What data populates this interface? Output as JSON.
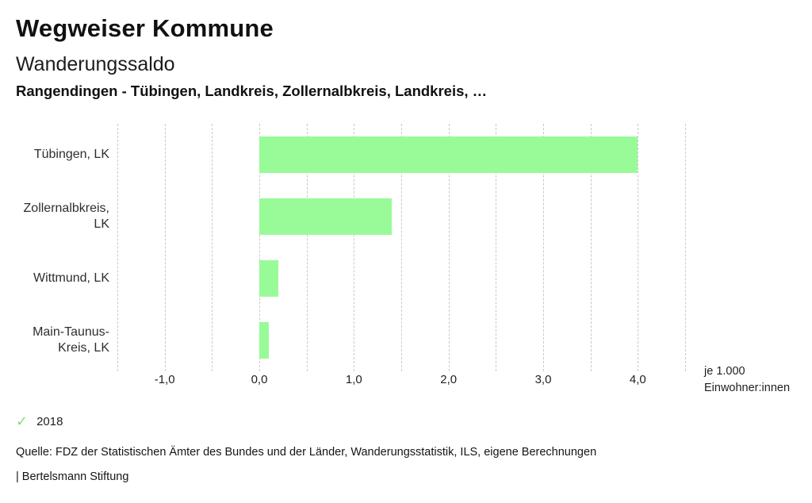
{
  "page": {
    "title": "Wegweiser Kommune",
    "subtitle": "Wanderungssaldo",
    "chart_heading": "Rangendingen - Tübingen, Landkreis, Zollernalbkreis, Landkreis, …"
  },
  "legend": {
    "check_icon": "✓",
    "year": "2018"
  },
  "footer": {
    "source": "Quelle: FDZ der Statistischen Ämter des Bundes und der Länder, Wanderungsstatistik, ILS, eigene Berechnungen",
    "attribution": "| Bertelsmann Stiftung"
  },
  "colors": {
    "bar": "#98FB98",
    "check": "#7FDE7F",
    "gridline": "#C9C9C9",
    "text": "#1A1A1A"
  },
  "chart_data": {
    "type": "bar",
    "orientation": "horizontal",
    "title": "Wanderungssaldo",
    "subtitle": "Rangendingen - Tübingen, Landkreis, Zollernalbkreis, Landkreis, …",
    "categories": [
      "Tübingen, LK",
      "Zollernalbkreis, LK",
      "Wittmund, LK",
      "Main-Taunus-Kreis, LK"
    ],
    "row_labels": [
      "Tübingen, LK",
      "Zollernalbkreis,\nLK",
      "Wittmund, LK",
      "Main-Taunus-\nKreis, LK"
    ],
    "series": [
      {
        "name": "2018",
        "values": [
          4.0,
          1.4,
          0.2,
          0.1
        ]
      }
    ],
    "xlabel": "je 1.000\nEinwohner:innen",
    "xlim": [
      -1.5,
      4.5
    ],
    "gridline_step": 0.5,
    "x_ticks": [
      -1.0,
      0.0,
      1.0,
      2.0,
      3.0,
      4.0
    ],
    "x_tick_labels": [
      "-1,0",
      "0,0",
      "1,0",
      "2,0",
      "3,0",
      "4,0"
    ],
    "grid": "vertical-dashed",
    "legend_position": "bottom-left",
    "ylim": null
  }
}
